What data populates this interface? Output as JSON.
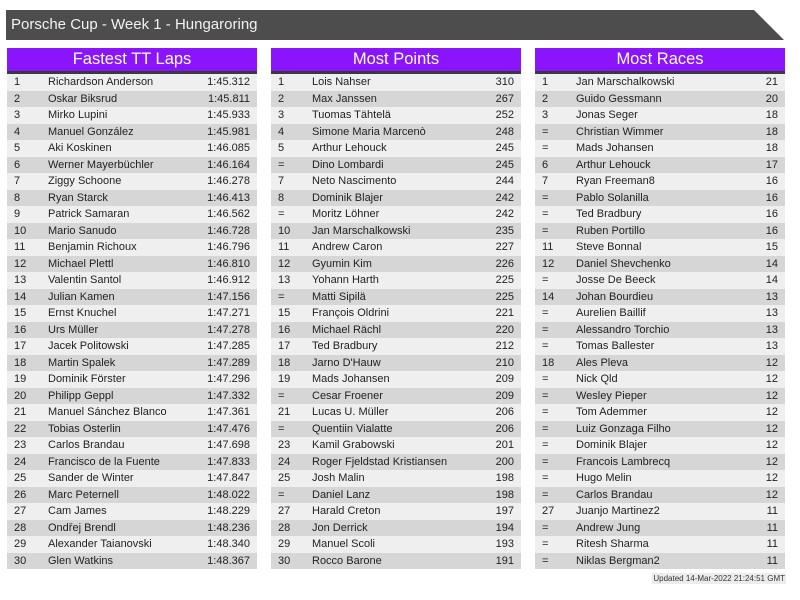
{
  "title": "Porsche Cup - Week 1 - Hungaroring",
  "colors": {
    "title_bar": "#4d4d4d",
    "panel_header": "#8a14fc",
    "row_light": "#efefef",
    "row_dark": "#d6d6d6"
  },
  "panels": [
    {
      "title": "Fastest TT Laps",
      "rows": [
        [
          "1",
          "Richardson Anderson",
          "1:45.312"
        ],
        [
          "2",
          "Oskar Biksrud",
          "1:45.811"
        ],
        [
          "3",
          "Mirko Lupini",
          "1:45.933"
        ],
        [
          "4",
          "Manuel González",
          "1:45.981"
        ],
        [
          "5",
          "Aki Koskinen",
          "1:46.085"
        ],
        [
          "6",
          "Werner Mayerbüchler",
          "1:46.164"
        ],
        [
          "7",
          "Ziggy Schoone",
          "1:46.278"
        ],
        [
          "8",
          "Ryan Starck",
          "1:46.413"
        ],
        [
          "9",
          "Patrick Samaran",
          "1:46.562"
        ],
        [
          "10",
          "Mario Sanudo",
          "1:46.728"
        ],
        [
          "11",
          "Benjamin Richoux",
          "1:46.796"
        ],
        [
          "12",
          "Michael Plettl",
          "1:46.810"
        ],
        [
          "13",
          "Valentin Santol",
          "1:46.912"
        ],
        [
          "14",
          "Julian Kamen",
          "1:47.156"
        ],
        [
          "15",
          "Ernst Knuchel",
          "1:47.271"
        ],
        [
          "16",
          "Urs Müller",
          "1:47.278"
        ],
        [
          "17",
          "Jacek Politowski",
          "1:47.285"
        ],
        [
          "18",
          "Martin Spalek",
          "1:47.289"
        ],
        [
          "19",
          "Dominik Förster",
          "1:47.296"
        ],
        [
          "20",
          "Philipp Geppl",
          "1:47.332"
        ],
        [
          "21",
          "Manuel Sánchez Blanco",
          "1:47.361"
        ],
        [
          "22",
          "Tobias Osterlin",
          "1:47.476"
        ],
        [
          "23",
          "Carlos Brandau",
          "1:47.698"
        ],
        [
          "24",
          "Francisco de la Fuente",
          "1:47.833"
        ],
        [
          "25",
          "Sander de Winter",
          "1:47.847"
        ],
        [
          "26",
          "Marc Peternell",
          "1:48.022"
        ],
        [
          "27",
          "Cam James",
          "1:48.229"
        ],
        [
          "28",
          "Ondřej Brendl",
          "1:48.236"
        ],
        [
          "29",
          "Alexander Taianovski",
          "1:48.340"
        ],
        [
          "30",
          "Glen Watkins",
          "1:48.367"
        ]
      ]
    },
    {
      "title": "Most Points",
      "rows": [
        [
          "1",
          "Lois Nahser",
          "310"
        ],
        [
          "2",
          "Max Janssen",
          "267"
        ],
        [
          "3",
          "Tuomas Tähtelä",
          "252"
        ],
        [
          "4",
          "Simone Maria Marcenò",
          "248"
        ],
        [
          "5",
          "Arthur Lehouck",
          "245"
        ],
        [
          "=",
          "Dino Lombardi",
          "245"
        ],
        [
          "7",
          "Neto Nascimento",
          "244"
        ],
        [
          "8",
          "Dominik Blajer",
          "242"
        ],
        [
          "=",
          "Moritz Löhner",
          "242"
        ],
        [
          "10",
          "Jan Marschalkowski",
          "235"
        ],
        [
          "11",
          "Andrew Caron",
          "227"
        ],
        [
          "12",
          "Gyumin Kim",
          "226"
        ],
        [
          "13",
          "Yohann Harth",
          "225"
        ],
        [
          "=",
          "Matti Sipilä",
          "225"
        ],
        [
          "15",
          "François Oldrini",
          "221"
        ],
        [
          "16",
          "Michael Rächl",
          "220"
        ],
        [
          "17",
          "Ted Bradbury",
          "212"
        ],
        [
          "18",
          "Jarno D'Hauw",
          "210"
        ],
        [
          "19",
          "Mads Johansen",
          "209"
        ],
        [
          "=",
          "Cesar Froener",
          "209"
        ],
        [
          "21",
          "Lucas U. Müller",
          "206"
        ],
        [
          "=",
          "Quentiin Vialatte",
          "206"
        ],
        [
          "23",
          "Kamil Grabowski",
          "201"
        ],
        [
          "24",
          "Roger Fjeldstad Kristiansen",
          "200"
        ],
        [
          "25",
          "Josh Malin",
          "198"
        ],
        [
          "=",
          "Daniel Lanz",
          "198"
        ],
        [
          "27",
          "Harald Creton",
          "197"
        ],
        [
          "28",
          "Jon Derrick",
          "194"
        ],
        [
          "29",
          "Manuel Scoli",
          "193"
        ],
        [
          "30",
          "Rocco Barone",
          "191"
        ]
      ]
    },
    {
      "title": "Most Races",
      "rows": [
        [
          "1",
          "Jan Marschalkowski",
          "21"
        ],
        [
          "2",
          "Guido Gessmann",
          "20"
        ],
        [
          "3",
          "Jonas Seger",
          "18"
        ],
        [
          "=",
          "Christian Wimmer",
          "18"
        ],
        [
          "=",
          "Mads Johansen",
          "18"
        ],
        [
          "6",
          "Arthur Lehouck",
          "17"
        ],
        [
          "7",
          "Ryan Freeman8",
          "16"
        ],
        [
          "=",
          "Pablo Solanilla",
          "16"
        ],
        [
          "=",
          "Ted Bradbury",
          "16"
        ],
        [
          "=",
          "Ruben Portillo",
          "16"
        ],
        [
          "11",
          "Steve Bonnal",
          "15"
        ],
        [
          "12",
          "Daniel Shevchenko",
          "14"
        ],
        [
          "=",
          "Josse De Beeck",
          "14"
        ],
        [
          "14",
          "Johan Bourdieu",
          "13"
        ],
        [
          "=",
          "Aurelien Baillif",
          "13"
        ],
        [
          "=",
          "Alessandro Torchio",
          "13"
        ],
        [
          "=",
          "Tomas Ballester",
          "13"
        ],
        [
          "18",
          "Ales Pleva",
          "12"
        ],
        [
          "=",
          "Nick Qld",
          "12"
        ],
        [
          "=",
          "Wesley Pieper",
          "12"
        ],
        [
          "=",
          "Tom Ademmer",
          "12"
        ],
        [
          "=",
          "Luiz Gonzaga Filho",
          "12"
        ],
        [
          "=",
          "Dominik Blajer",
          "12"
        ],
        [
          "=",
          "Francois Lambrecq",
          "12"
        ],
        [
          "=",
          "Hugo Melin",
          "12"
        ],
        [
          "=",
          "Carlos Brandau",
          "12"
        ],
        [
          "27",
          "Juanjo Martinez2",
          "11"
        ],
        [
          "=",
          "Andrew Jung",
          "11"
        ],
        [
          "=",
          "Ritesh Sharma",
          "11"
        ],
        [
          "=",
          "Niklas Bergman2",
          "11"
        ]
      ]
    }
  ],
  "footer": "Updated 14-Mar-2022 21:24:51 GMT"
}
